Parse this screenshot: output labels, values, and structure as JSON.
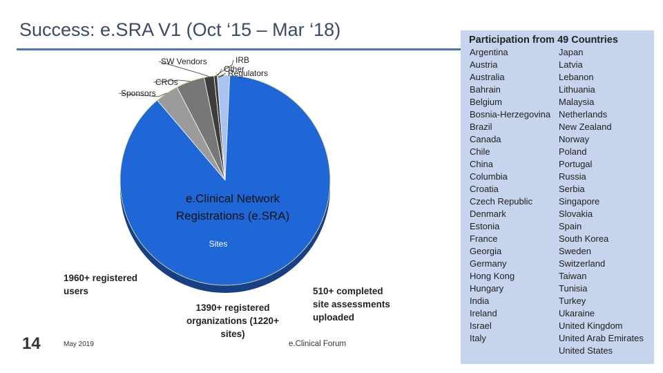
{
  "title": "Success: e.SRA V1 (Oct ‘15 – Mar ‘18)",
  "colors": {
    "accent_rule": "#4a76b8",
    "panel_bg": "#c6d4ee",
    "slice_colors": [
      "#1f67d6",
      "#9b9b9b",
      "#777777",
      "#3d3d3d",
      "#a9c2f0"
    ],
    "leader_color": "#333333"
  },
  "chart": {
    "center_label": "e.Clinical Network Registrations  (e.SRA)",
    "sublabel": "Sites",
    "slices": [
      {
        "label": "",
        "share": 0.888
      },
      {
        "label": "Sponsors",
        "share": 0.036
      },
      {
        "label": "CROs",
        "share": 0.044
      },
      {
        "label": "SW Vendors",
        "share": 0.015
      },
      {
        "label": "IRB",
        "share": 0.005
      },
      {
        "label": "Other",
        "share": 0.0
      },
      {
        "label": "Regulators",
        "share": 0.019
      }
    ]
  },
  "participation": {
    "title": "Participation from 49 Countries",
    "column1": [
      "Argentina",
      "Austria",
      "Australia",
      "Bahrain",
      "Belgium",
      "Bosnia-Herzegovina",
      "Brazil",
      "Canada",
      "Chile",
      "China",
      "Columbia",
      "Croatia",
      "Czech Republic",
      "Denmark",
      "Estonia",
      "France",
      "Georgia",
      "Germany",
      "Hong Kong",
      "Hungary",
      "India",
      "Ireland",
      "Israel",
      "Italy"
    ],
    "column2": [
      "Japan",
      "Latvia",
      "Lebanon",
      "Lithuania",
      "Malaysia",
      "Netherlands",
      "New Zealand",
      "Norway",
      "Poland",
      "Portugal",
      "Russia",
      "Serbia",
      "Singapore",
      "Slovakia",
      "Spain",
      "South Korea",
      "Sweden",
      "Switzerland",
      "Taiwan",
      "Tunisia",
      "Turkey",
      "Ukaraine",
      "United Kingdom",
      "United Arab Emirates",
      "United States"
    ]
  },
  "notes": {
    "users": "1960+ registered users",
    "organizations": "1390+ registered organizations (1220+ sites)",
    "assessments": "510+ completed site assessments uploaded"
  },
  "footer": {
    "page_number": "14",
    "date": "May 2019",
    "forum": "e.Clinical Forum"
  }
}
